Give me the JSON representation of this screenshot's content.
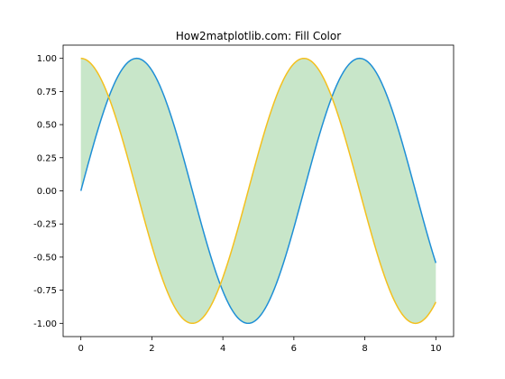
{
  "chart_data": {
    "type": "line",
    "title": "How2matplotlib.com: Fill Color",
    "xlabel": "",
    "ylabel": "",
    "xlim": [
      -0.5,
      10.5
    ],
    "ylim": [
      -1.1,
      1.1
    ],
    "x_ticks": [
      0,
      2,
      4,
      6,
      8,
      10
    ],
    "x_tick_labels": [
      "0",
      "2",
      "4",
      "6",
      "8",
      "10"
    ],
    "y_ticks": [
      1.0,
      0.75,
      0.5,
      0.25,
      0.0,
      -0.25,
      -0.5,
      -0.75,
      -1.0
    ],
    "y_tick_labels": [
      "1.00",
      "0.75",
      "0.50",
      "0.25",
      "0.00",
      "-0.25",
      "-0.50",
      "-0.75",
      "-1.00"
    ],
    "grid": false,
    "x": [
      0,
      0.5,
      1.0,
      1.5,
      2.0,
      2.5,
      3.0,
      3.5,
      4.0,
      4.5,
      5.0,
      5.5,
      6.0,
      6.5,
      7.0,
      7.5,
      8.0,
      8.5,
      9.0,
      9.5,
      10.0
    ],
    "series": [
      {
        "function": "sin(x)",
        "color": "#1f8fd6",
        "values": [
          0.0,
          0.479,
          0.841,
          0.997,
          0.909,
          0.598,
          0.141,
          -0.351,
          -0.757,
          -0.978,
          -0.959,
          -0.706,
          -0.279,
          0.215,
          0.657,
          0.938,
          0.989,
          0.798,
          0.412,
          -0.075,
          -0.544
        ]
      },
      {
        "function": "cos(x)",
        "color": "#f4c01e",
        "values": [
          1.0,
          0.878,
          0.54,
          0.071,
          -0.416,
          -0.801,
          -0.99,
          -0.936,
          -0.654,
          -0.211,
          0.284,
          0.709,
          0.96,
          0.977,
          0.754,
          0.347,
          -0.146,
          -0.602,
          -0.911,
          -0.997,
          -0.839
        ]
      }
    ],
    "fill_between": {
      "color": "#c8e6c9"
    }
  }
}
